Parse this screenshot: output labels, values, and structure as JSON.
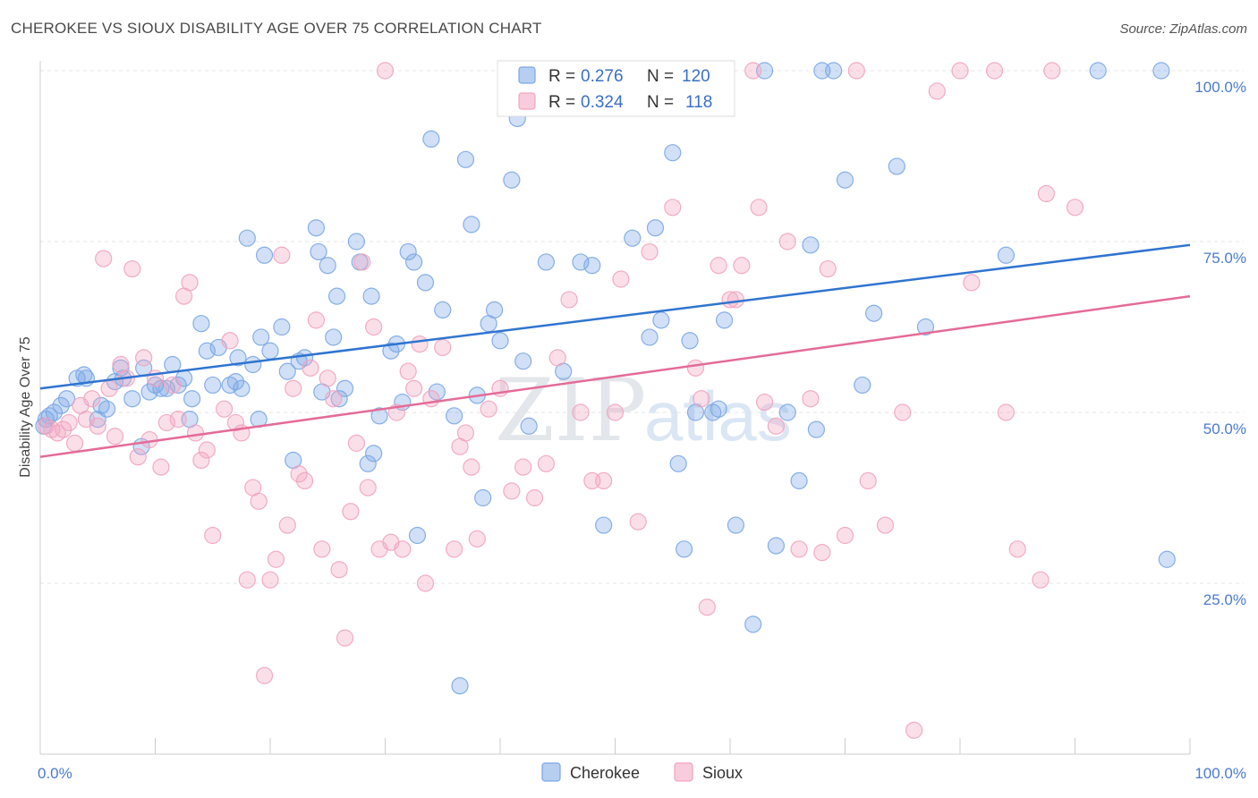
{
  "title": "CHEROKEE VS SIOUX DISABILITY AGE OVER 75 CORRELATION CHART",
  "source": "Source: ZipAtlas.com",
  "watermark": {
    "zip": "ZIP",
    "atlas": "atlas"
  },
  "chart_data": {
    "type": "scatter",
    "ylabel": "Disability Age Over 75",
    "xlim": [
      0,
      100
    ],
    "ylim": [
      0,
      100
    ],
    "x_ticks": [
      "0.0%",
      "100.0%"
    ],
    "y_ticks": [
      {
        "value": 25,
        "label": "25.0%"
      },
      {
        "value": 50,
        "label": "50.0%"
      },
      {
        "value": 75,
        "label": "75.0%"
      },
      {
        "value": 100,
        "label": "100.0%"
      }
    ],
    "grid": true,
    "legend_position": "top-center",
    "series": [
      {
        "name": "Cherokee",
        "color": "#7aa7e6",
        "line_color": "#2f74d0",
        "r": "0.276",
        "n": "120",
        "trend": [
          [
            0,
            53.5
          ],
          [
            100,
            74.5
          ]
        ],
        "points": [
          [
            0.3,
            48
          ],
          [
            0.5,
            49
          ],
          [
            0.8,
            49.5
          ],
          [
            1.2,
            50
          ],
          [
            1.8,
            51
          ],
          [
            2.3,
            52
          ],
          [
            3.2,
            55
          ],
          [
            3.8,
            55.5
          ],
          [
            4,
            55
          ],
          [
            5,
            49
          ],
          [
            5.3,
            51
          ],
          [
            5.8,
            50.5
          ],
          [
            6.5,
            54.5
          ],
          [
            7,
            56.5
          ],
          [
            7.2,
            55
          ],
          [
            8,
            52
          ],
          [
            8.8,
            45
          ],
          [
            9,
            56.5
          ],
          [
            9.5,
            53
          ],
          [
            10,
            54
          ],
          [
            10.5,
            53.5
          ],
          [
            11,
            53.5
          ],
          [
            11.5,
            57
          ],
          [
            12,
            54
          ],
          [
            12.5,
            55
          ],
          [
            13,
            49
          ],
          [
            13.2,
            52
          ],
          [
            14,
            63
          ],
          [
            14.5,
            59
          ],
          [
            15,
            54
          ],
          [
            15.5,
            59.5
          ],
          [
            16.5,
            54
          ],
          [
            17,
            54.5
          ],
          [
            17.2,
            58
          ],
          [
            17.5,
            53.5
          ],
          [
            18,
            75.5
          ],
          [
            18.5,
            57
          ],
          [
            19,
            49
          ],
          [
            19.2,
            61
          ],
          [
            19.5,
            73
          ],
          [
            20,
            59
          ],
          [
            21,
            62.5
          ],
          [
            21.5,
            56
          ],
          [
            22,
            43
          ],
          [
            22.5,
            57.5
          ],
          [
            23,
            58
          ],
          [
            24,
            77
          ],
          [
            24.2,
            73.5
          ],
          [
            24.5,
            53
          ],
          [
            25,
            71.5
          ],
          [
            25.5,
            61
          ],
          [
            25.8,
            67
          ],
          [
            26,
            52
          ],
          [
            26.5,
            53.5
          ],
          [
            27.5,
            75
          ],
          [
            27.8,
            72
          ],
          [
            28.5,
            42.5
          ],
          [
            28.8,
            67
          ],
          [
            29,
            44
          ],
          [
            29.5,
            49.5
          ],
          [
            30.5,
            59
          ],
          [
            31,
            60
          ],
          [
            31.5,
            51.5
          ],
          [
            32,
            73.5
          ],
          [
            32.5,
            72
          ],
          [
            32.8,
            32
          ],
          [
            33.5,
            69
          ],
          [
            34,
            90
          ],
          [
            34.5,
            53
          ],
          [
            35,
            65
          ],
          [
            36,
            49.5
          ],
          [
            37,
            87
          ],
          [
            37.5,
            77.5
          ],
          [
            38,
            52.5
          ],
          [
            38.5,
            37.5
          ],
          [
            39,
            63
          ],
          [
            39.5,
            65
          ],
          [
            40,
            60.5
          ],
          [
            41,
            84
          ],
          [
            41.5,
            93
          ],
          [
            42,
            57.5
          ],
          [
            42.5,
            48
          ],
          [
            44,
            72
          ],
          [
            45,
            100
          ],
          [
            45.5,
            56
          ],
          [
            47,
            72
          ],
          [
            48,
            71.5
          ],
          [
            49,
            33.5
          ],
          [
            49.5,
            100
          ],
          [
            50.5,
            100
          ],
          [
            51.5,
            75.5
          ],
          [
            52.5,
            100
          ],
          [
            53,
            61
          ],
          [
            53.5,
            77
          ],
          [
            54,
            63.5
          ],
          [
            55,
            88
          ],
          [
            55.5,
            42.5
          ],
          [
            56,
            30
          ],
          [
            56.5,
            60.5
          ],
          [
            57,
            50
          ],
          [
            58.5,
            50
          ],
          [
            59,
            50.5
          ],
          [
            59.5,
            63.5
          ],
          [
            60.5,
            33.5
          ],
          [
            62,
            19
          ],
          [
            63,
            100
          ],
          [
            64,
            30.5
          ],
          [
            65,
            50
          ],
          [
            66,
            40
          ],
          [
            67,
            74.5
          ],
          [
            67.5,
            47.5
          ],
          [
            68,
            100
          ],
          [
            69,
            100
          ],
          [
            70,
            84
          ],
          [
            71.5,
            54
          ],
          [
            72.5,
            64.5
          ],
          [
            74.5,
            86
          ],
          [
            77,
            62.5
          ],
          [
            84,
            73
          ],
          [
            92,
            100
          ],
          [
            97.5,
            100
          ],
          [
            98,
            28.5
          ],
          [
            36.5,
            10
          ]
        ]
      },
      {
        "name": "Sioux",
        "color": "#f2a3bf",
        "line_color": "#e46b98",
        "r": "0.324",
        "n": "118",
        "trend": [
          [
            0,
            43.5
          ],
          [
            100,
            67
          ]
        ],
        "points": [
          [
            0.5,
            48
          ],
          [
            1,
            47.5
          ],
          [
            1.5,
            47
          ],
          [
            2,
            47.5
          ],
          [
            2.5,
            48.5
          ],
          [
            3,
            45.5
          ],
          [
            3.5,
            51
          ],
          [
            4,
            49
          ],
          [
            4.5,
            52
          ],
          [
            5,
            48
          ],
          [
            5.5,
            72.5
          ],
          [
            6,
            53.5
          ],
          [
            6.5,
            46.5
          ],
          [
            7,
            57
          ],
          [
            7.5,
            55
          ],
          [
            8,
            71
          ],
          [
            8.5,
            43.5
          ],
          [
            9,
            58
          ],
          [
            9.5,
            46
          ],
          [
            10,
            55
          ],
          [
            10.5,
            42
          ],
          [
            11,
            48.5
          ],
          [
            11.5,
            54
          ],
          [
            12,
            49
          ],
          [
            12.5,
            67
          ],
          [
            13,
            69
          ],
          [
            13.5,
            47
          ],
          [
            14,
            43
          ],
          [
            14.5,
            44.5
          ],
          [
            15,
            32
          ],
          [
            16,
            50.5
          ],
          [
            16.5,
            60.5
          ],
          [
            17,
            48.5
          ],
          [
            17.5,
            47
          ],
          [
            18,
            25.5
          ],
          [
            18.5,
            39
          ],
          [
            19,
            37
          ],
          [
            19.5,
            11.5
          ],
          [
            20,
            25.5
          ],
          [
            20.5,
            28.5
          ],
          [
            21,
            73
          ],
          [
            21.5,
            33.5
          ],
          [
            22,
            53.5
          ],
          [
            22.5,
            41
          ],
          [
            23,
            40
          ],
          [
            23.5,
            56.5
          ],
          [
            24,
            63.5
          ],
          [
            24.5,
            30
          ],
          [
            25,
            55
          ],
          [
            25.5,
            52
          ],
          [
            26,
            27
          ],
          [
            26.5,
            17
          ],
          [
            27,
            35.5
          ],
          [
            27.5,
            45.5
          ],
          [
            28,
            72
          ],
          [
            28.5,
            39
          ],
          [
            29,
            62.5
          ],
          [
            29.5,
            30
          ],
          [
            30,
            100
          ],
          [
            30.5,
            31
          ],
          [
            31,
            50
          ],
          [
            31.5,
            30
          ],
          [
            32,
            56
          ],
          [
            32.5,
            53.5
          ],
          [
            33,
            60
          ],
          [
            33.5,
            25
          ],
          [
            34,
            52
          ],
          [
            35,
            59.5
          ],
          [
            36,
            30
          ],
          [
            36.5,
            45
          ],
          [
            37,
            47
          ],
          [
            37.5,
            42
          ],
          [
            38,
            31.5
          ],
          [
            39,
            50.5
          ],
          [
            40,
            53.5
          ],
          [
            41,
            38.5
          ],
          [
            42,
            42
          ],
          [
            43,
            37.5
          ],
          [
            44,
            42.5
          ],
          [
            45,
            58
          ],
          [
            46,
            66.5
          ],
          [
            47,
            50
          ],
          [
            48,
            40
          ],
          [
            49,
            40
          ],
          [
            50,
            50
          ],
          [
            50.5,
            69.5
          ],
          [
            51,
            100
          ],
          [
            52,
            34
          ],
          [
            53,
            73.5
          ],
          [
            54,
            100
          ],
          [
            55,
            80
          ],
          [
            56,
            100
          ],
          [
            57,
            56.5
          ],
          [
            57.5,
            52
          ],
          [
            58,
            21.5
          ],
          [
            59,
            71.5
          ],
          [
            60,
            66.5
          ],
          [
            60.5,
            66.5
          ],
          [
            61,
            71.5
          ],
          [
            62,
            100
          ],
          [
            62.5,
            80
          ],
          [
            63,
            51.5
          ],
          [
            64,
            48
          ],
          [
            65,
            75
          ],
          [
            66,
            30
          ],
          [
            67,
            52
          ],
          [
            68,
            29.5
          ],
          [
            68.5,
            71
          ],
          [
            70,
            32
          ],
          [
            71,
            100
          ],
          [
            72,
            40
          ],
          [
            73.5,
            33.5
          ],
          [
            75,
            50
          ],
          [
            76,
            3.5
          ],
          [
            78,
            97
          ],
          [
            80,
            100
          ],
          [
            81,
            69
          ],
          [
            83,
            100
          ],
          [
            84,
            50
          ],
          [
            85,
            30
          ],
          [
            87,
            25.5
          ],
          [
            88,
            100
          ],
          [
            87.5,
            82
          ],
          [
            90,
            80
          ]
        ]
      }
    ]
  }
}
